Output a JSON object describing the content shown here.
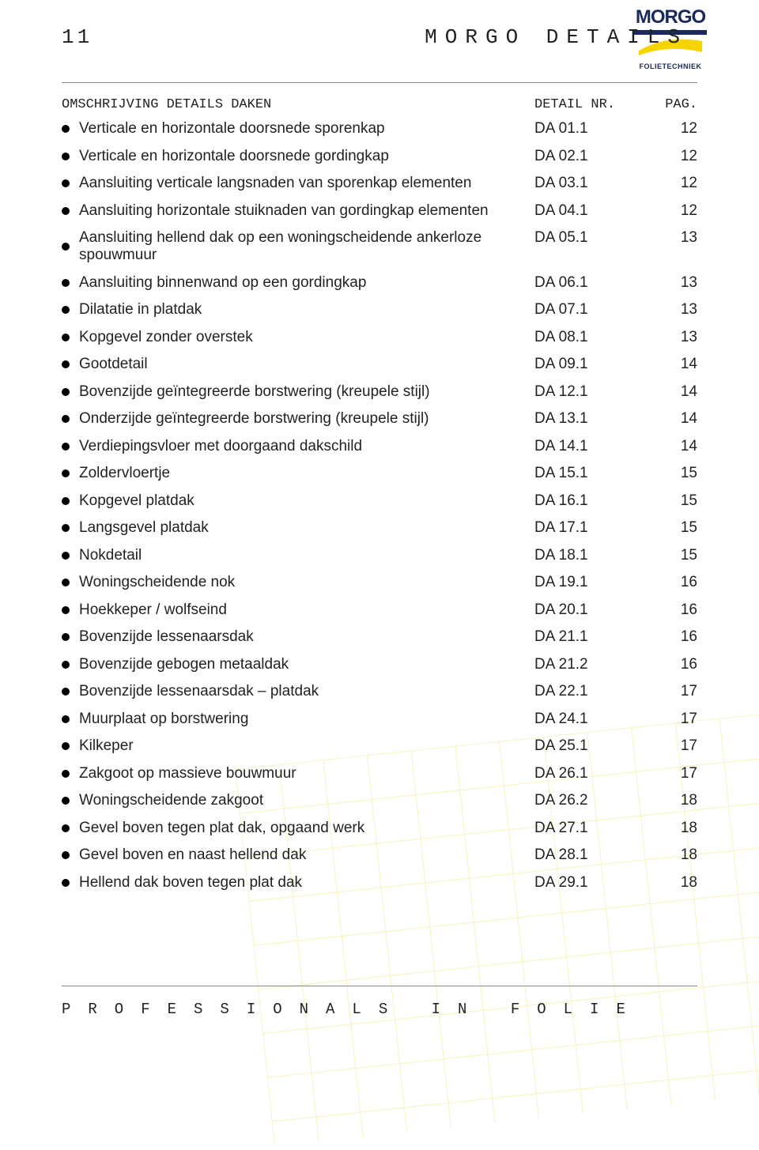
{
  "page_number": "11",
  "page_title": "MORGO DETAILS",
  "logo": {
    "brand": "MORGO",
    "sub": "FOLIETECHNIEK",
    "brand_color": "#1a2a5c",
    "swoosh_color": "#f5d400"
  },
  "header": {
    "desc": "OMSCHRIJVING DETAILS DAKEN",
    "detail": "DETAIL NR.",
    "pag": "PAG."
  },
  "rows": [
    {
      "desc": "Verticale en horizontale doorsnede sporenkap",
      "detail": "DA 01.1",
      "pag": "12"
    },
    {
      "desc": "Verticale en horizontale doorsnede gordingkap",
      "detail": "DA 02.1",
      "pag": "12"
    },
    {
      "desc": "Aansluiting verticale langsnaden van sporenkap elementen",
      "detail": "DA 03.1",
      "pag": "12"
    },
    {
      "desc": "Aansluiting horizontale stuiknaden van gordingkap elementen",
      "detail": "DA 04.1",
      "pag": "12"
    },
    {
      "desc": "Aansluiting hellend dak op een woningscheidende ankerloze spouwmuur",
      "detail": "DA 05.1",
      "pag": "13"
    },
    {
      "desc": "Aansluiting binnenwand op een gordingkap",
      "detail": "DA 06.1",
      "pag": "13"
    },
    {
      "desc": "Dilatatie in platdak",
      "detail": "DA 07.1",
      "pag": "13"
    },
    {
      "desc": "Kopgevel zonder overstek",
      "detail": "DA 08.1",
      "pag": "13"
    },
    {
      "desc": "Gootdetail",
      "detail": "DA 09.1",
      "pag": "14"
    },
    {
      "desc": "Bovenzijde geïntegreerde borstwering (kreupele stijl)",
      "detail": "DA 12.1",
      "pag": "14"
    },
    {
      "desc": "Onderzijde geïntegreerde borstwering (kreupele stijl)",
      "detail": "DA 13.1",
      "pag": "14"
    },
    {
      "desc": "Verdiepingsvloer met doorgaand dakschild",
      "detail": "DA 14.1",
      "pag": "14"
    },
    {
      "desc": "Zoldervloertje",
      "detail": "DA 15.1",
      "pag": "15"
    },
    {
      "desc": "Kopgevel platdak",
      "detail": "DA 16.1",
      "pag": "15"
    },
    {
      "desc": "Langsgevel platdak",
      "detail": "DA 17.1",
      "pag": "15"
    },
    {
      "desc": "Nokdetail",
      "detail": "DA 18.1",
      "pag": "15"
    },
    {
      "desc": "Woningscheidende nok",
      "detail": "DA 19.1",
      "pag": "16"
    },
    {
      "desc": "Hoekkeper / wolfseind",
      "detail": "DA 20.1",
      "pag": "16"
    },
    {
      "desc": "Bovenzijde lessenaarsdak",
      "detail": "DA 21.1",
      "pag": "16"
    },
    {
      "desc": "Bovenzijde gebogen metaaldak",
      "detail": "DA 21.2",
      "pag": "16"
    },
    {
      "desc": "Bovenzijde lessenaarsdak – platdak",
      "detail": "DA 22.1",
      "pag": "17"
    },
    {
      "desc": "Muurplaat op borstwering",
      "detail": "DA 24.1",
      "pag": "17"
    },
    {
      "desc": "Kilkeper",
      "detail": "DA 25.1",
      "pag": "17"
    },
    {
      "desc": "Zakgoot op massieve bouwmuur",
      "detail": "DA 26.1",
      "pag": "17"
    },
    {
      "desc": "Woningscheidende zakgoot",
      "detail": "DA 26.2",
      "pag": "18"
    },
    {
      "desc": "Gevel boven tegen plat dak, opgaand werk",
      "detail": "DA 27.1",
      "pag": "18"
    },
    {
      "desc": "Gevel boven en naast hellend dak",
      "detail": "DA 28.1",
      "pag": "18"
    },
    {
      "desc": "Hellend dak boven tegen plat dak",
      "detail": "DA 29.1",
      "pag": "18"
    }
  ],
  "footer": "PROFESSIONALS IN FOLIE",
  "styling": {
    "page_bg": "#ffffff",
    "text_color": "#222222",
    "rule_color": "#888888",
    "grid_color": "#f2e16a",
    "body_fontsize": 19,
    "mono_fontsize": 17,
    "title_fontsize": 26,
    "title_letterspacing": 10,
    "footer_letterspacing": 22,
    "row_gap": 12.5,
    "bullet_diameter": 10
  }
}
